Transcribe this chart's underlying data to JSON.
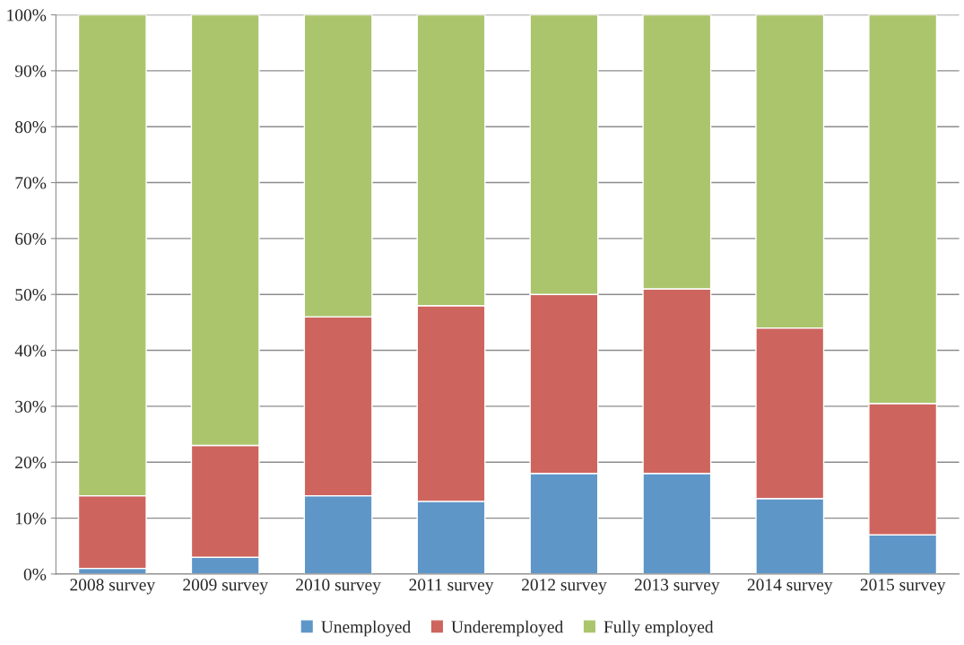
{
  "chart_data": {
    "type": "bar",
    "stacked": true,
    "categories": [
      "2008 survey",
      "2009 survey",
      "2010 survey",
      "2011 survey",
      "2012 survey",
      "2013 survey",
      "2014 survey",
      "2015 survey"
    ],
    "series": [
      {
        "name": "Unemployed",
        "color": "#5f96c8",
        "values": [
          1,
          3,
          14,
          13,
          18,
          18,
          13.5,
          7
        ]
      },
      {
        "name": "Underemployed",
        "color": "#cd655e",
        "values": [
          13,
          20,
          32,
          35,
          32,
          33,
          30.5,
          23.5
        ]
      },
      {
        "name": "Fully employed",
        "color": "#abc56d",
        "values": [
          86,
          77,
          54,
          52,
          50,
          49,
          56,
          69.5
        ]
      }
    ],
    "ylim": [
      0,
      100
    ],
    "yticks": [
      {
        "value": 0,
        "label": "0%"
      },
      {
        "value": 10,
        "label": "10%"
      },
      {
        "value": 20,
        "label": "20%"
      },
      {
        "value": 30,
        "label": "30%"
      },
      {
        "value": 40,
        "label": "40%"
      },
      {
        "value": 50,
        "label": "50%"
      },
      {
        "value": 60,
        "label": "60%"
      },
      {
        "value": 70,
        "label": "70%"
      },
      {
        "value": 80,
        "label": "80%"
      },
      {
        "value": 90,
        "label": "90%"
      },
      {
        "value": 100,
        "label": "100%"
      }
    ],
    "grid": "y",
    "legend": "bottom"
  }
}
